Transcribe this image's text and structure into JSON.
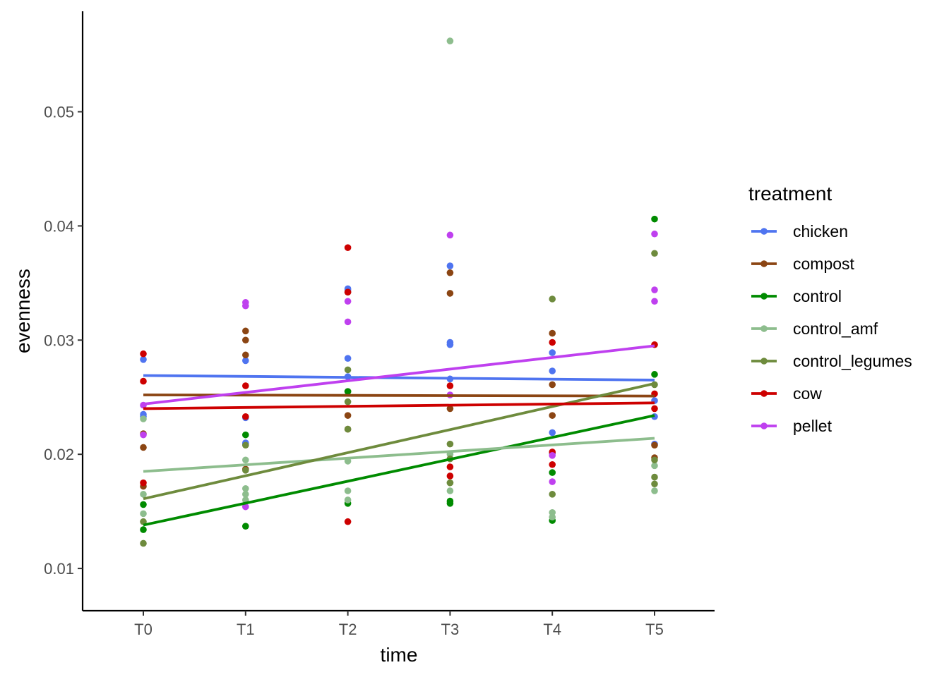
{
  "chart_data": {
    "type": "scatter",
    "xlabel": "time",
    "ylabel": "evenness",
    "categories": [
      "T0",
      "T1",
      "T2",
      "T3",
      "T4",
      "T5"
    ],
    "ylim": [
      0.0063,
      0.0588
    ],
    "yticks": [
      0.01,
      0.02,
      0.03,
      0.04,
      0.05
    ],
    "ytick_labels": [
      "0.01",
      "0.02",
      "0.03",
      "0.04",
      "0.05"
    ],
    "grid": false,
    "legend": {
      "title": "treatment",
      "position": "right"
    },
    "series": [
      {
        "name": "chicken",
        "color": "#4F74F0",
        "points": [
          [
            0,
            0.0283
          ],
          [
            0,
            0.0235
          ],
          [
            0,
            0.0233
          ],
          [
            1,
            0.0282
          ],
          [
            1,
            0.0232
          ],
          [
            1,
            0.021
          ],
          [
            1,
            0.0209
          ],
          [
            2,
            0.0345
          ],
          [
            2,
            0.0344
          ],
          [
            2,
            0.0284
          ],
          [
            2,
            0.0268
          ],
          [
            3,
            0.0365
          ],
          [
            3,
            0.0298
          ],
          [
            3,
            0.0296
          ],
          [
            3,
            0.0266
          ],
          [
            4,
            0.0289
          ],
          [
            4,
            0.0273
          ],
          [
            4,
            0.0219
          ],
          [
            4,
            0.0201
          ],
          [
            5,
            0.0247
          ],
          [
            5,
            0.0233
          ],
          [
            5,
            0.0209
          ]
        ],
        "trend": [
          0.0269,
          0.0265
        ]
      },
      {
        "name": "compost",
        "color": "#8B4513",
        "points": [
          [
            0,
            0.0218
          ],
          [
            0,
            0.0206
          ],
          [
            0,
            0.0172
          ],
          [
            1,
            0.0308
          ],
          [
            1,
            0.03
          ],
          [
            1,
            0.0287
          ],
          [
            1,
            0.0187
          ],
          [
            2,
            0.0342
          ],
          [
            2,
            0.0255
          ],
          [
            2,
            0.0234
          ],
          [
            2,
            0.0222
          ],
          [
            3,
            0.0359
          ],
          [
            3,
            0.0341
          ],
          [
            3,
            0.024
          ],
          [
            4,
            0.0306
          ],
          [
            4,
            0.0261
          ],
          [
            4,
            0.0234
          ],
          [
            5,
            0.0208
          ],
          [
            5,
            0.0197
          ]
        ],
        "trend": [
          0.0252,
          0.0251
        ]
      },
      {
        "name": "control",
        "color": "#008B00",
        "points": [
          [
            0,
            0.0156
          ],
          [
            0,
            0.0134
          ],
          [
            1,
            0.0217
          ],
          [
            1,
            0.0137
          ],
          [
            2,
            0.0255
          ],
          [
            2,
            0.0157
          ],
          [
            3,
            0.0159
          ],
          [
            3,
            0.0157
          ],
          [
            4,
            0.0184
          ],
          [
            4,
            0.0142
          ],
          [
            5,
            0.0406
          ],
          [
            5,
            0.027
          ]
        ],
        "trend": [
          0.0138,
          0.0234
        ]
      },
      {
        "name": "control_amf",
        "color": "#8DBD8D",
        "points": [
          [
            0,
            0.0231
          ],
          [
            0,
            0.0165
          ],
          [
            0,
            0.0148
          ],
          [
            1,
            0.0195
          ],
          [
            1,
            0.017
          ],
          [
            1,
            0.0165
          ],
          [
            1,
            0.016
          ],
          [
            2,
            0.0194
          ],
          [
            2,
            0.0168
          ],
          [
            2,
            0.016
          ],
          [
            3,
            0.0562
          ],
          [
            3,
            0.02
          ],
          [
            3,
            0.0175
          ],
          [
            3,
            0.0168
          ],
          [
            4,
            0.0149
          ],
          [
            4,
            0.0145
          ],
          [
            5,
            0.019
          ],
          [
            5,
            0.0168
          ]
        ],
        "trend": [
          0.0185,
          0.0214
        ]
      },
      {
        "name": "control_legumes",
        "color": "#6E8B3D",
        "points": [
          [
            0,
            0.0141
          ],
          [
            0,
            0.0122
          ],
          [
            1,
            0.0208
          ],
          [
            1,
            0.0186
          ],
          [
            2,
            0.0274
          ],
          [
            2,
            0.0246
          ],
          [
            2,
            0.0222
          ],
          [
            3,
            0.0209
          ],
          [
            3,
            0.0196
          ],
          [
            3,
            0.0175
          ],
          [
            4,
            0.0336
          ],
          [
            4,
            0.0165
          ],
          [
            5,
            0.0376
          ],
          [
            5,
            0.0261
          ],
          [
            5,
            0.0195
          ],
          [
            5,
            0.018
          ],
          [
            5,
            0.0174
          ]
        ],
        "trend": [
          0.0161,
          0.0262
        ]
      },
      {
        "name": "cow",
        "color": "#CD0000",
        "points": [
          [
            0,
            0.0288
          ],
          [
            0,
            0.0264
          ],
          [
            0,
            0.0175
          ],
          [
            1,
            0.026
          ],
          [
            1,
            0.0233
          ],
          [
            2,
            0.0381
          ],
          [
            2,
            0.0342
          ],
          [
            2,
            0.0141
          ],
          [
            3,
            0.026
          ],
          [
            3,
            0.0189
          ],
          [
            3,
            0.0181
          ],
          [
            4,
            0.0298
          ],
          [
            4,
            0.0202
          ],
          [
            4,
            0.0191
          ],
          [
            5,
            0.0296
          ],
          [
            5,
            0.0253
          ],
          [
            5,
            0.024
          ]
        ],
        "trend": [
          0.024,
          0.0245
        ]
      },
      {
        "name": "pellet",
        "color": "#BF40EF",
        "points": [
          [
            0,
            0.0243
          ],
          [
            0,
            0.0217
          ],
          [
            1,
            0.0333
          ],
          [
            1,
            0.033
          ],
          [
            1,
            0.0154
          ],
          [
            2,
            0.0334
          ],
          [
            2,
            0.0316
          ],
          [
            3,
            0.0392
          ],
          [
            3,
            0.0252
          ],
          [
            4,
            0.0199
          ],
          [
            4,
            0.0176
          ],
          [
            5,
            0.0393
          ],
          [
            5,
            0.0344
          ],
          [
            5,
            0.0334
          ]
        ],
        "trend": [
          0.0244,
          0.0295
        ]
      }
    ]
  }
}
